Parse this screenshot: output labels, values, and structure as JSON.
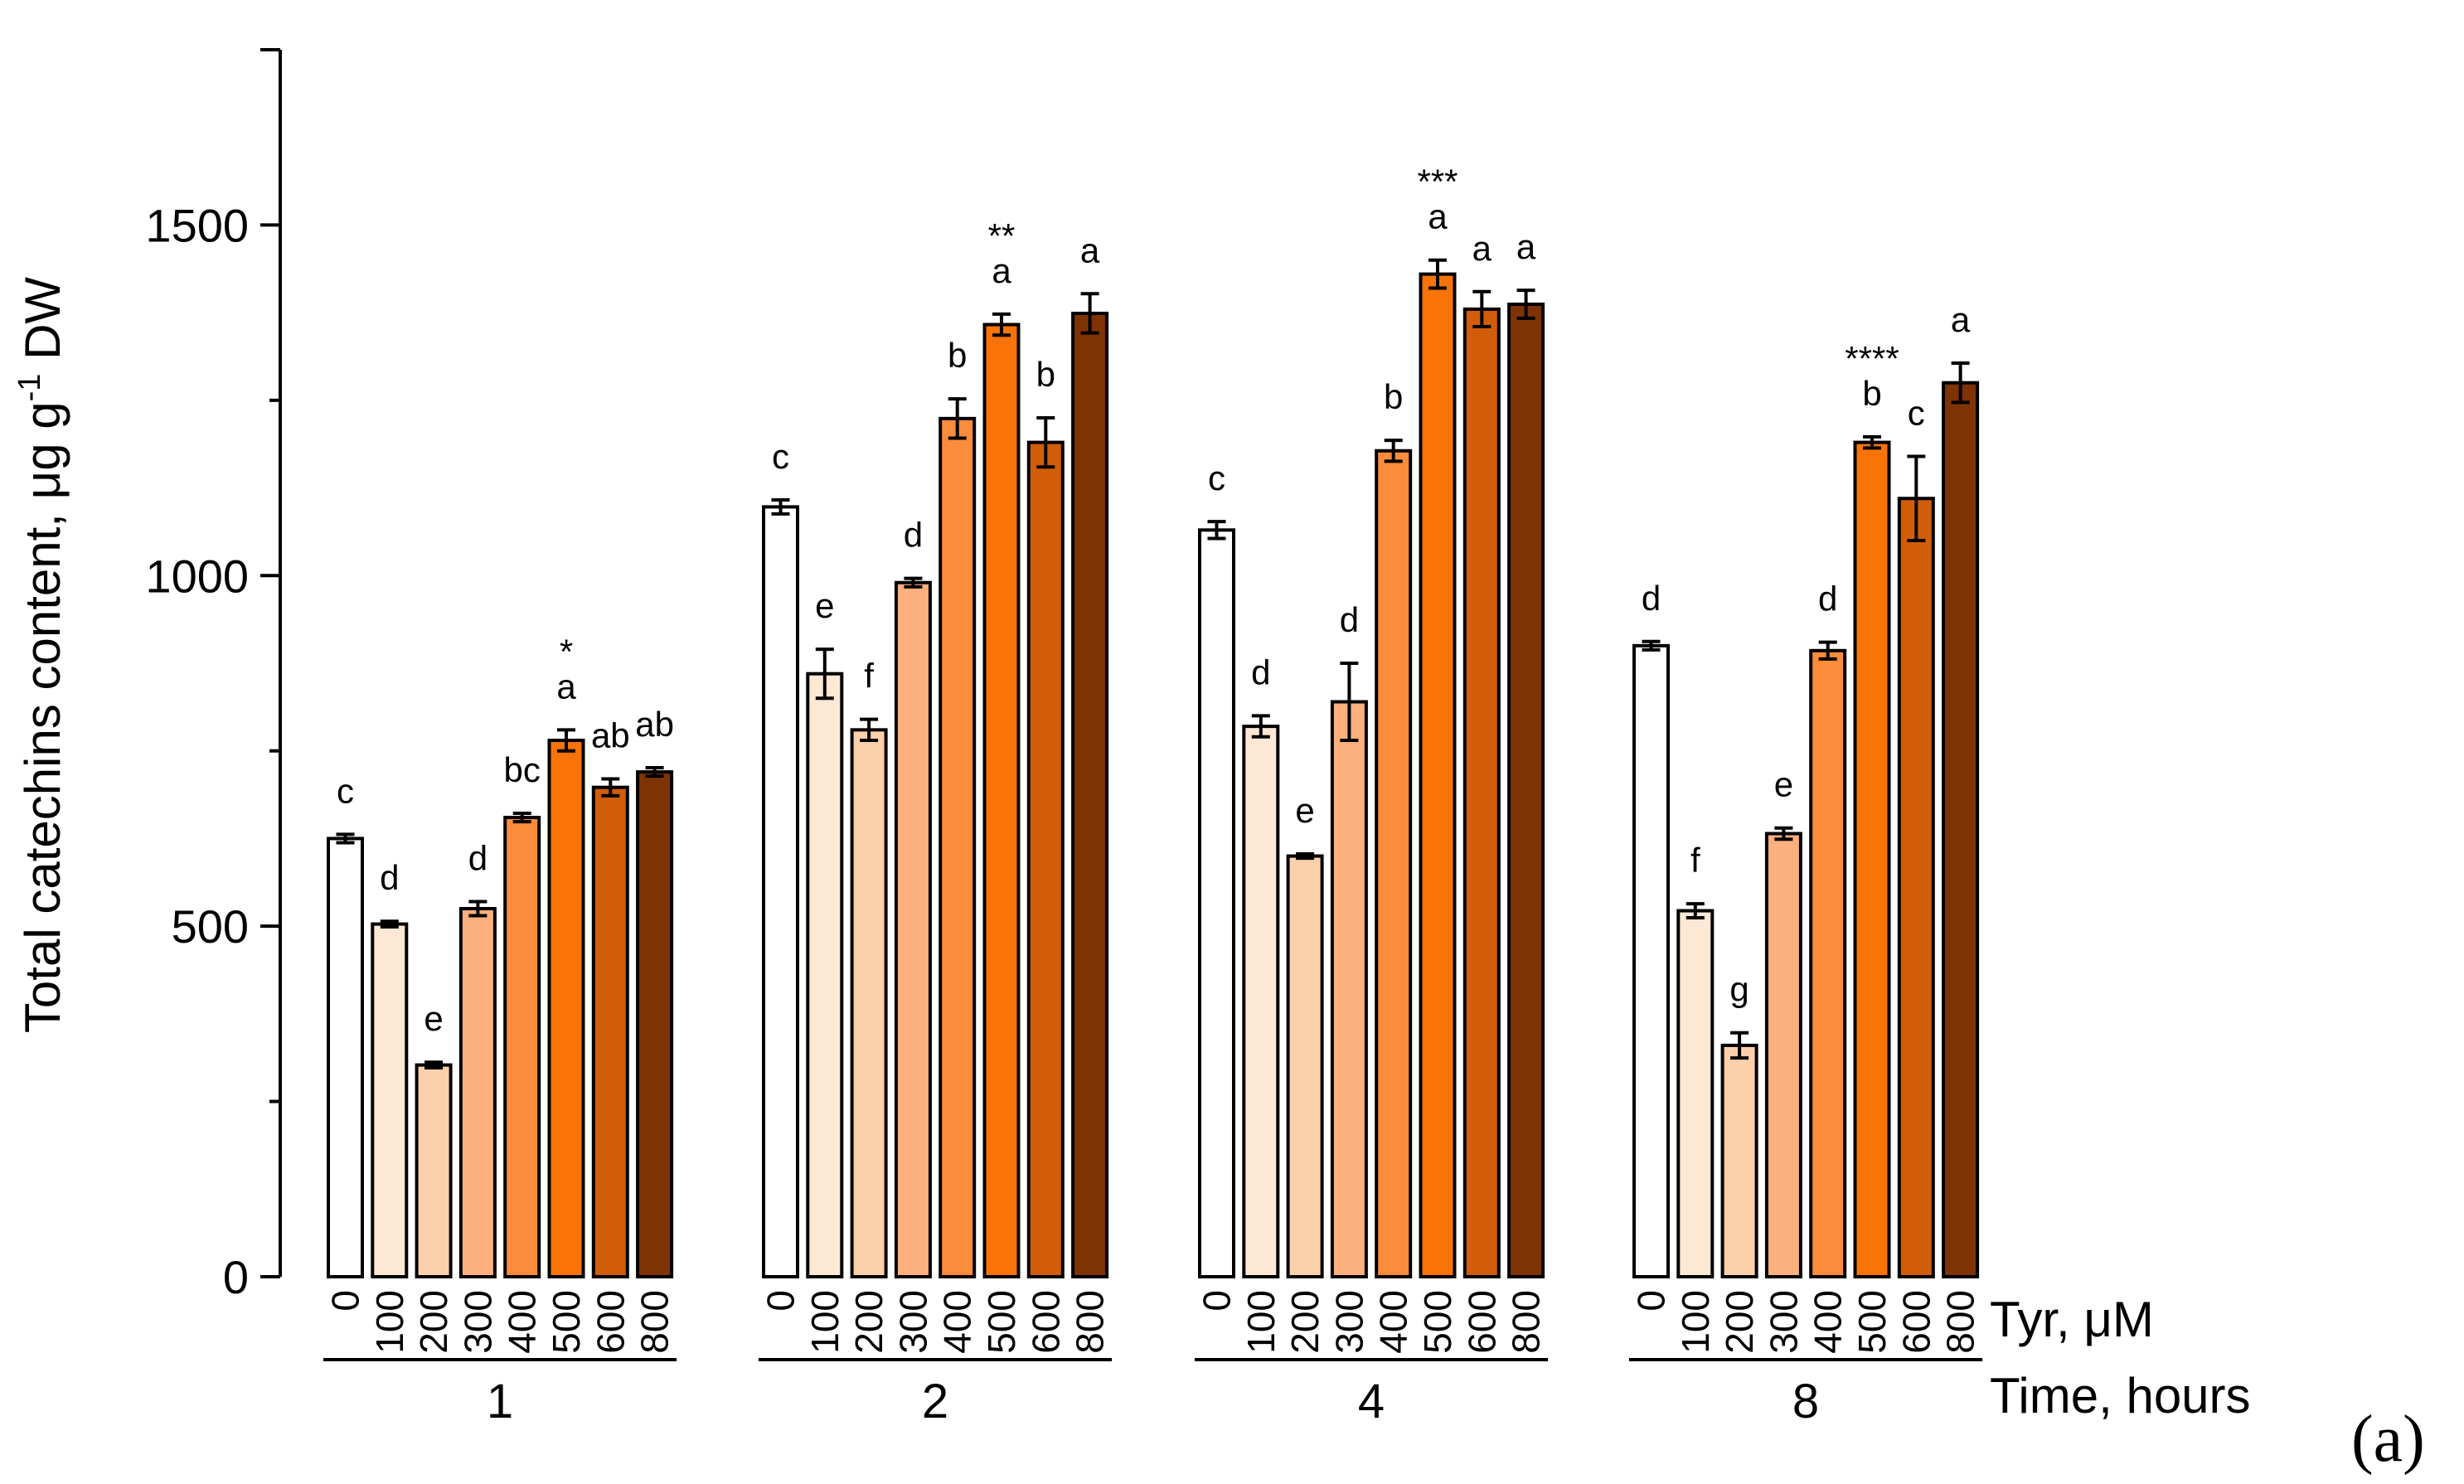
{
  "panel_label": "(a)",
  "chart_data": {
    "type": "bar",
    "title": "",
    "ylabel_main": "Total catechins content, μg g",
    "ylabel_sup": "-1",
    "ylabel_tail": " DW",
    "ylim": [
      0,
      1750
    ],
    "yticks": [
      0,
      500,
      1000,
      1500
    ],
    "grid": false,
    "x_row_label": "Tyr, μM",
    "group_row_label": "Time, hours",
    "categories": [
      "0",
      "100",
      "200",
      "300",
      "400",
      "500",
      "600",
      "800"
    ],
    "colors": [
      "#ffffff",
      "#fde8d6",
      "#fdd0ac",
      "#fcb07e",
      "#fb8c3c",
      "#f97306",
      "#d25d08",
      "#7f3304"
    ],
    "groups": [
      {
        "name": "1",
        "values": [
          625,
          503,
          302,
          525,
          655,
          765,
          698,
          720
        ],
        "errors": [
          6,
          4,
          4,
          10,
          6,
          15,
          12,
          6
        ],
        "letters": [
          "c",
          "d",
          "e",
          "d",
          "bc",
          "a",
          "ab",
          "ab"
        ],
        "stars": [
          "",
          "",
          "",
          "",
          "",
          "*",
          "",
          ""
        ]
      },
      {
        "name": "2",
        "values": [
          1098,
          860,
          780,
          990,
          1224,
          1358,
          1190,
          1374
        ],
        "errors": [
          10,
          35,
          15,
          6,
          28,
          15,
          35,
          28
        ],
        "letters": [
          "c",
          "e",
          "f",
          "d",
          "b",
          "a",
          "b",
          "a"
        ],
        "stars": [
          "",
          "",
          "",
          "",
          "",
          "**",
          "",
          ""
        ]
      },
      {
        "name": "4",
        "values": [
          1065,
          785,
          600,
          820,
          1178,
          1430,
          1380,
          1387
        ],
        "errors": [
          12,
          15,
          3,
          55,
          15,
          20,
          25,
          20
        ],
        "letters": [
          "c",
          "d",
          "e",
          "d",
          "b",
          "a",
          "a",
          "a"
        ],
        "stars": [
          "",
          "",
          "",
          "",
          "",
          "***",
          "",
          ""
        ]
      },
      {
        "name": "8",
        "values": [
          900,
          522,
          330,
          632,
          893,
          1190,
          1110,
          1275
        ],
        "errors": [
          6,
          10,
          18,
          8,
          12,
          8,
          60,
          28
        ],
        "letters": [
          "d",
          "f",
          "g",
          "e",
          "d",
          "b",
          "c",
          "a"
        ],
        "stars": [
          "",
          "",
          "",
          "",
          "",
          "****",
          "",
          ""
        ]
      }
    ]
  }
}
